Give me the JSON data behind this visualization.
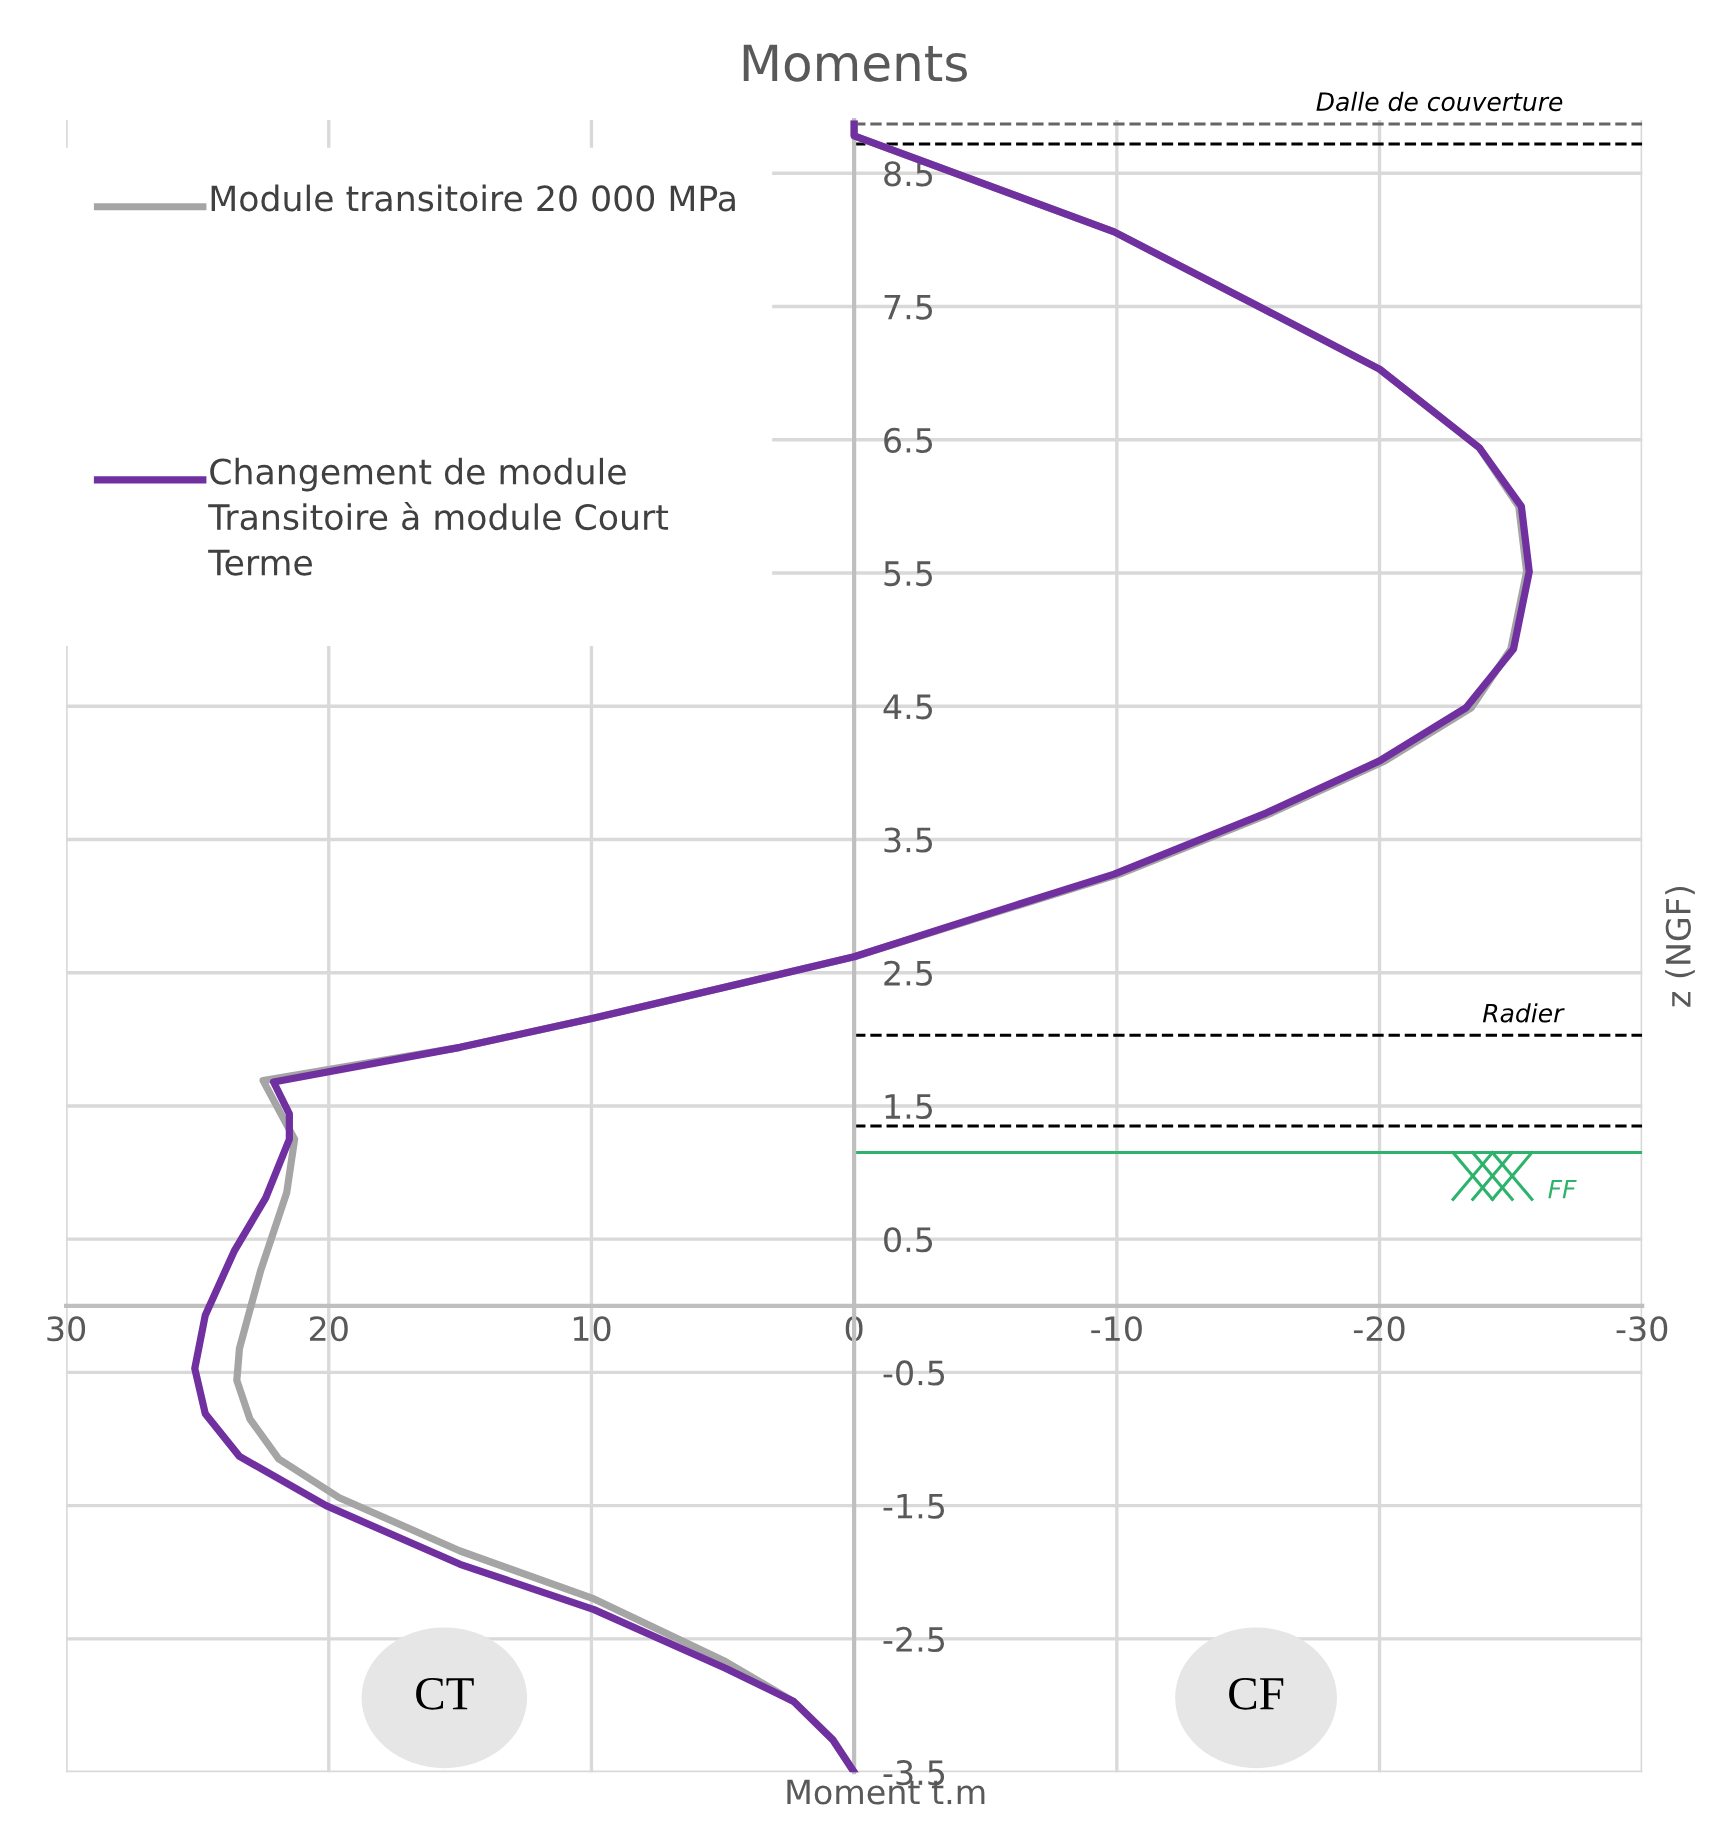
{
  "chart_data": {
    "type": "line",
    "title": "Moments",
    "xlabel": "Moment t.m",
    "ylabel": "z (NGF)",
    "xlim": [
      30,
      -30
    ],
    "xticks": [
      30,
      20,
      10,
      0,
      -10,
      -20,
      -30
    ],
    "ylim": [
      -3.5,
      8.9
    ],
    "yticks": [
      -3.5,
      -2.5,
      -1.5,
      -0.5,
      0.5,
      1.5,
      2.5,
      3.5,
      4.5,
      5.5,
      6.5,
      7.5,
      8.5
    ],
    "grid": true,
    "legend": "top left",
    "marker": "none",
    "line_style": "solid",
    "series": [
      {
        "name": "Module transitoire 20 000 MPa",
        "color": "#a5a5a5",
        "x": [
          0,
          0,
          -9.9,
          -15.7,
          -20.0,
          -23.8,
          -25.3,
          -25.6,
          -25.0,
          -23.5,
          -20.2,
          -15.9,
          -10.1,
          -4.7,
          0,
          9.9,
          15.0,
          22.5,
          21.3,
          21.6,
          22.6,
          23.4,
          23.5,
          23.0,
          21.9,
          19.6,
          15.0,
          9.9,
          4.9,
          2.3,
          0.8,
          0
        ],
        "values": [
          8.87,
          8.78,
          8.06,
          7.47,
          7.03,
          6.44,
          6.0,
          5.51,
          4.93,
          4.49,
          4.09,
          3.7,
          3.24,
          2.91,
          2.62,
          2.16,
          1.94,
          1.69,
          1.25,
          0.85,
          0.26,
          -0.32,
          -0.56,
          -0.85,
          -1.15,
          -1.44,
          -1.84,
          -2.2,
          -2.67,
          -2.97,
          -3.26,
          -3.5
        ]
      },
      {
        "name": "Changement de module Transitoire à module Court Terme",
        "color": "#7030a0",
        "x": [
          0,
          0,
          -9.9,
          -15.7,
          -20.0,
          -23.8,
          -25.4,
          -25.7,
          -25.1,
          -23.3,
          -20.0,
          -15.7,
          -9.9,
          -4.6,
          0,
          9.9,
          15.0,
          22.1,
          21.5,
          21.5,
          22.4,
          23.6,
          24.7,
          25.1,
          24.7,
          23.4,
          20.1,
          15.0,
          9.9,
          4.9,
          2.3,
          0.8,
          0
        ],
        "values": [
          8.87,
          8.78,
          8.06,
          7.47,
          7.03,
          6.44,
          6.0,
          5.51,
          4.93,
          4.49,
          4.09,
          3.7,
          3.24,
          2.91,
          2.62,
          2.16,
          1.94,
          1.68,
          1.44,
          1.25,
          0.81,
          0.41,
          -0.07,
          -0.47,
          -0.81,
          -1.13,
          -1.5,
          -1.94,
          -2.28,
          -2.72,
          -2.97,
          -3.26,
          -3.5
        ]
      }
    ],
    "ref_lines": [
      {
        "axis": "y",
        "value": 8.87,
        "label": "Dalle de couverture",
        "color": "#666666",
        "line_style": "dashed"
      },
      {
        "axis": "y",
        "value": 8.72,
        "label": null,
        "color": "#000000",
        "line_style": "dashed"
      },
      {
        "axis": "y",
        "value": 2.03,
        "label": "Radier",
        "color": "#000000",
        "line_style": "dashed"
      },
      {
        "axis": "y",
        "value": 1.35,
        "label": null,
        "color": "#000000",
        "line_style": "dashed"
      },
      {
        "axis": "y",
        "value": 1.15,
        "label": "FF",
        "color": "#2db36b",
        "line_style": "solid"
      }
    ],
    "annotations": [
      "CT",
      "CF"
    ]
  }
}
